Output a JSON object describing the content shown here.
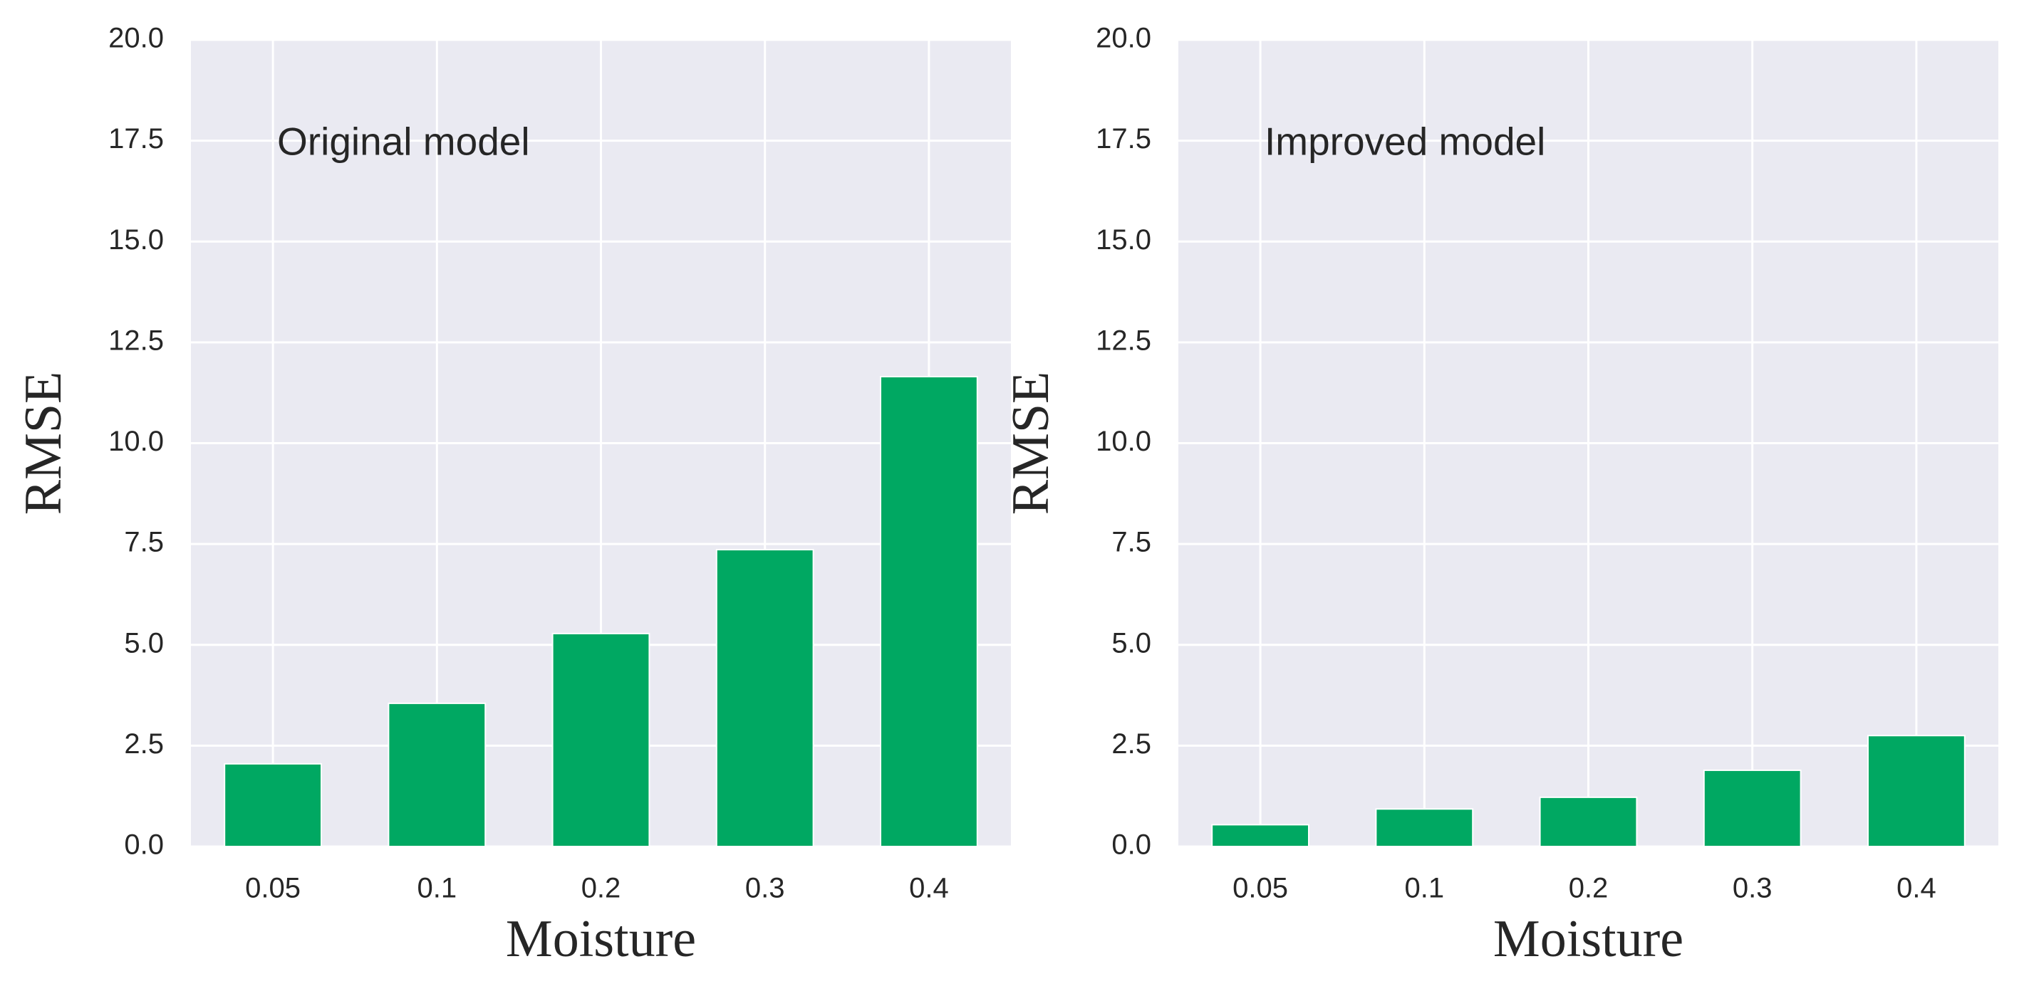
{
  "chart_data": [
    {
      "type": "bar",
      "annotation": "Original model",
      "xlabel": "Moisture",
      "ylabel": "RMSE",
      "categories": [
        "0.05",
        "0.1",
        "0.2",
        "0.3",
        "0.4"
      ],
      "values": [
        2.05,
        3.55,
        5.28,
        7.36,
        11.65
      ],
      "color": "#00a862",
      "ylim": [
        0,
        20
      ],
      "yticks": [
        {
          "value": 0,
          "label": "0.0"
        },
        2.5,
        {
          "value": 5,
          "label": "5.0"
        },
        7.5,
        {
          "value": 10,
          "label": "10.0"
        },
        12.5,
        {
          "value": 15,
          "label": "15.0"
        },
        17.5,
        {
          "value": 20,
          "label": "20.0"
        }
      ],
      "grid": true
    },
    {
      "type": "bar",
      "annotation": "Improved model",
      "xlabel": "Moisture",
      "ylabel": "RMSE",
      "categories": [
        "0.05",
        "0.1",
        "0.2",
        "0.3",
        "0.4"
      ],
      "values": [
        0.54,
        0.93,
        1.22,
        1.89,
        2.75
      ],
      "color": "#00a862",
      "ylim": [
        0,
        20
      ],
      "yticks": [
        {
          "value": 0,
          "label": "0.0"
        },
        2.5,
        {
          "value": 5,
          "label": "5.0"
        },
        7.5,
        {
          "value": 10,
          "label": "10.0"
        },
        12.5,
        {
          "value": 15,
          "label": "15.0"
        },
        17.5,
        {
          "value": 20,
          "label": "20.0"
        }
      ],
      "grid": true
    }
  ]
}
